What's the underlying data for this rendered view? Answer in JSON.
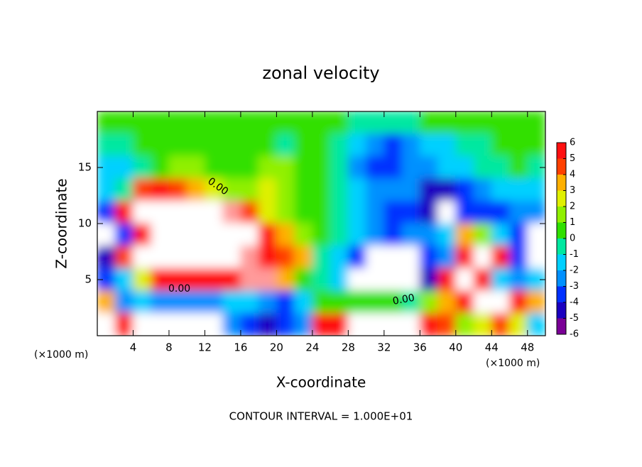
{
  "chart_data": {
    "type": "heatmap",
    "title": "zonal velocity",
    "xlabel": "X-coordinate",
    "ylabel": "Z-coordinate",
    "x_unit": "(×1000 m)",
    "y_unit": "(×1000 m)",
    "footnote": "CONTOUR INTERVAL = 1.000E+01",
    "annotations": [
      "0.00",
      "0.00",
      "0.00"
    ],
    "xlim": [
      0,
      50
    ],
    "ylim": [
      0,
      20
    ],
    "xticks": [
      4,
      8,
      12,
      16,
      20,
      24,
      28,
      32,
      36,
      40,
      44,
      48
    ],
    "yticks": [
      5,
      10,
      15
    ],
    "x": [
      1,
      3,
      5,
      7,
      9,
      11,
      13,
      15,
      17,
      19,
      21,
      23,
      25,
      27,
      29,
      31,
      33,
      35,
      37,
      39,
      41,
      43,
      45,
      47,
      49
    ],
    "y": [
      19,
      17,
      15,
      13,
      11,
      9,
      7,
      5,
      3,
      1
    ],
    "z": [
      [
        0.5,
        0.5,
        0,
        0,
        0,
        0,
        0,
        0,
        0,
        0,
        0,
        0.5,
        0.5,
        0,
        -0.5,
        -1,
        -1,
        -0.5,
        0,
        0,
        0,
        0,
        0.5,
        0.5,
        0.5
      ],
      [
        -1,
        -0.5,
        0,
        0,
        0,
        0,
        0,
        0.5,
        0.5,
        0,
        -0.5,
        0,
        0,
        -0.5,
        -2,
        -3,
        -3.5,
        -3,
        -2,
        -1.5,
        -1,
        -0.5,
        0,
        0,
        0
      ],
      [
        -2,
        -2,
        -1,
        0,
        1,
        1,
        0.5,
        0,
        0,
        1,
        1,
        0.5,
        0,
        -1,
        -2.5,
        -3.5,
        -3.5,
        -3,
        -2.5,
        -2,
        -1.5,
        -1,
        -0.5,
        0,
        -0.5
      ],
      [
        -2,
        -1,
        4,
        5,
        4,
        3,
        2,
        1.5,
        1,
        2.5,
        1,
        0.5,
        0,
        -1,
        -2,
        -2.5,
        -3,
        -3,
        -4.5,
        -5,
        -4,
        -3,
        -2,
        -2,
        -2
      ],
      [
        -4,
        5,
        8,
        8,
        8,
        8,
        8,
        6,
        4,
        2,
        1,
        0.5,
        0,
        -1,
        -2,
        -3,
        -4,
        -4,
        -5,
        8,
        -4,
        -4,
        -4,
        -3,
        -3
      ],
      [
        8,
        -4,
        5,
        8,
        8,
        8,
        8,
        8,
        8,
        5,
        3,
        1,
        0,
        -1,
        -2,
        -3,
        -4,
        -3,
        -3,
        -2,
        3,
        1,
        -2,
        -4,
        8
      ],
      [
        -5,
        4,
        8,
        8,
        8,
        8,
        8,
        8,
        6,
        5,
        4,
        3,
        -1,
        -2,
        -4,
        8,
        8,
        8,
        -4,
        -3,
        5,
        8,
        5,
        -4,
        8
      ],
      [
        -4,
        -2,
        2,
        5,
        5,
        5,
        5,
        5,
        6,
        6,
        3,
        0,
        -1,
        -2,
        8,
        8,
        8,
        8,
        -5,
        5,
        8,
        5,
        -2,
        -3,
        -2
      ],
      [
        3,
        -3,
        -2,
        -3,
        -3,
        -3,
        -3,
        -2,
        -2,
        -3,
        -4,
        -2,
        0,
        0,
        0,
        0,
        0,
        -0.5,
        1,
        3,
        5,
        8,
        8,
        5,
        3
      ],
      [
        8,
        5,
        8,
        8,
        8,
        8,
        8,
        -3,
        -4,
        -5,
        -4,
        -3,
        5,
        5,
        8,
        8,
        8,
        8,
        5,
        4,
        1,
        2,
        4,
        2,
        -2
      ]
    ],
    "colorbar_ticks": [
      -6,
      -5,
      -4,
      -3,
      -2,
      -1,
      0,
      1,
      2,
      3,
      4,
      5,
      6
    ],
    "colormap": [
      "#7a0096",
      "#1a00c0",
      "#0030ff",
      "#0090ff",
      "#00d0ff",
      "#00e8a0",
      "#30e000",
      "#90f000",
      "#e0f000",
      "#ffb000",
      "#ff4000",
      "#ff1010",
      "#ff9a9a"
    ],
    "over_color": "#ffffff"
  }
}
